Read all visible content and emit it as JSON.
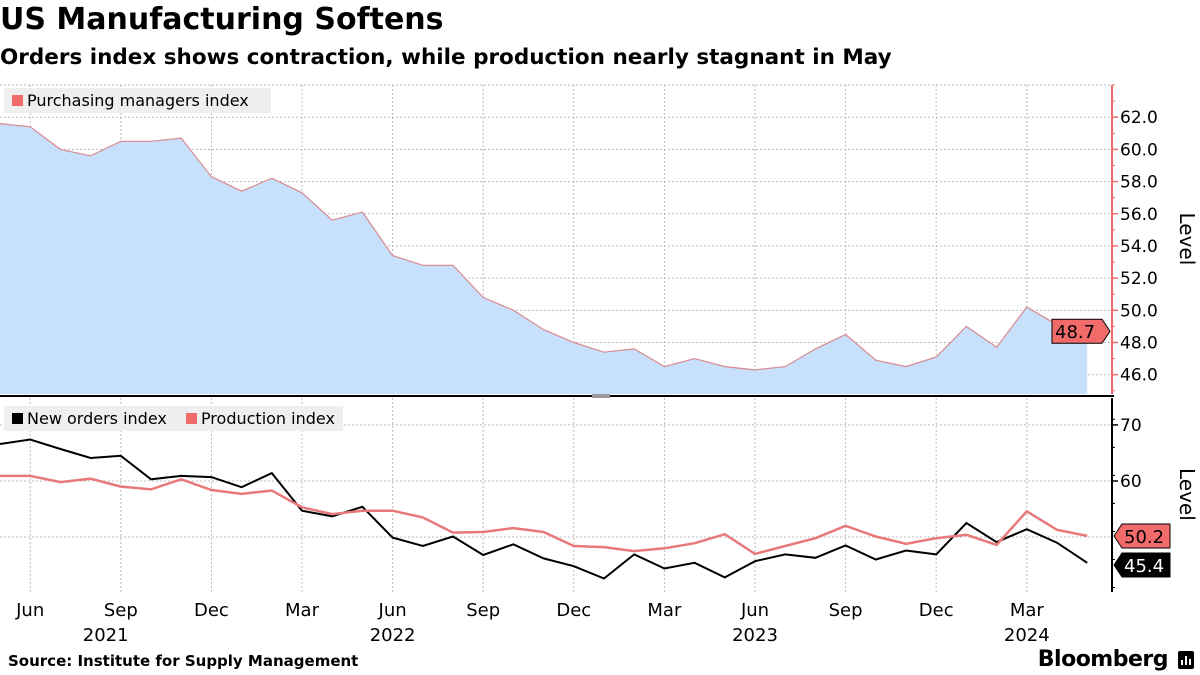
{
  "title": "US Manufacturing Softens",
  "subtitle": "Orders index shows contraction, while production nearly stagnant in May",
  "source": "Source: Institute for Supply Management",
  "logo": "Bloomberg",
  "colors": {
    "pmi_fill": "#c7e0fb",
    "pmi_line": "#d98a90",
    "production": "#e8797a",
    "new_orders": "#000000",
    "tag_red": "#f26b6b"
  },
  "chart_data": [
    {
      "type": "area",
      "panel": "top",
      "ylabel": "Level",
      "ylim": [
        44.8,
        64.0
      ],
      "yticks": [
        "62.0",
        "60.0",
        "58.0",
        "56.0",
        "54.0",
        "52.0",
        "50.0",
        "48.0",
        "46.0"
      ],
      "grid": true,
      "legend_position": "top-left",
      "series": [
        {
          "name": "Purchasing managers index",
          "color": "#f26b6b",
          "last_label": "48.7",
          "values": [
            61.6,
            61.4,
            60.0,
            59.6,
            60.5,
            60.5,
            60.7,
            58.3,
            57.4,
            58.2,
            57.3,
            55.6,
            56.1,
            53.4,
            52.8,
            52.8,
            50.8,
            50.0,
            48.8,
            48.0,
            47.4,
            47.6,
            46.5,
            47.0,
            46.5,
            46.3,
            46.5,
            47.6,
            48.5,
            46.9,
            46.5,
            47.1,
            49.0,
            47.7,
            50.2,
            49.1,
            48.7
          ]
        }
      ]
    },
    {
      "type": "line",
      "panel": "bottom",
      "ylabel": "Level",
      "ylim": [
        40.2,
        74.8
      ],
      "yticks": [
        "70",
        "60"
      ],
      "grid": true,
      "legend_position": "top-left",
      "series": [
        {
          "name": "New orders index",
          "color": "#000000",
          "last_label": "45.4",
          "values": [
            66.6,
            67.4,
            65.7,
            64.1,
            64.5,
            60.3,
            60.9,
            60.7,
            58.9,
            61.4,
            54.7,
            53.7,
            55.4,
            49.9,
            48.4,
            50.1,
            46.8,
            48.7,
            46.2,
            44.8,
            42.6,
            46.9,
            44.4,
            45.4,
            42.8,
            45.7,
            46.9,
            46.3,
            48.5,
            46.0,
            47.6,
            46.9,
            52.5,
            49.1,
            51.4,
            49.0,
            45.4
          ]
        },
        {
          "name": "Production index",
          "color": "#e8797a",
          "last_label": "50.2",
          "values": [
            60.9,
            60.9,
            59.8,
            60.4,
            59.0,
            58.5,
            60.3,
            58.4,
            57.7,
            58.3,
            55.3,
            54.1,
            54.7,
            54.7,
            53.5,
            50.8,
            50.9,
            51.6,
            50.9,
            48.4,
            48.2,
            47.5,
            48.0,
            48.9,
            50.5,
            47.0,
            48.4,
            49.8,
            52.0,
            50.1,
            48.8,
            49.8,
            50.4,
            48.6,
            54.6,
            51.3,
            50.2
          ]
        }
      ]
    }
  ],
  "x_axis": {
    "month_ticks": [
      "Jun",
      "Sep",
      "Dec",
      "Mar",
      "Jun",
      "Sep",
      "Dec",
      "Mar",
      "Jun",
      "Sep",
      "Dec",
      "Mar"
    ],
    "year_ticks": [
      "2021",
      "2022",
      "2023",
      "2024"
    ]
  }
}
